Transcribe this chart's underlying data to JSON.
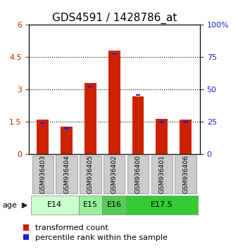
{
  "title": "GDS4591 / 1428786_at",
  "samples": [
    "GSM936403",
    "GSM936404",
    "GSM936405",
    "GSM936402",
    "GSM936400",
    "GSM936401",
    "GSM936406"
  ],
  "transformed_counts": [
    1.6,
    1.3,
    3.3,
    4.8,
    2.7,
    1.65,
    1.6
  ],
  "percentile_ranks": [
    1.45,
    1.2,
    3.15,
    4.65,
    2.75,
    1.5,
    1.5
  ],
  "percentile_bar_heights": [
    0.08,
    0.08,
    0.08,
    0.08,
    0.08,
    0.08,
    0.08
  ],
  "ylim_left": [
    0,
    6
  ],
  "ylim_right": [
    0,
    100
  ],
  "yticks_left": [
    0,
    1.5,
    3,
    4.5,
    6
  ],
  "ytick_labels_left": [
    "0",
    "1.5",
    "3",
    "4.5",
    "6"
  ],
  "yticks_right": [
    0,
    25,
    50,
    75,
    100
  ],
  "ytick_labels_right": [
    "0",
    "25",
    "50",
    "75",
    "100%"
  ],
  "bar_color_red": "#cc2200",
  "bar_color_blue": "#2222cc",
  "bar_width": 0.5,
  "age_groups": [
    {
      "label": "E14",
      "start": 0,
      "end": 2,
      "color": "#ccffcc"
    },
    {
      "label": "E15",
      "start": 2,
      "end": 3,
      "color": "#99ee99"
    },
    {
      "label": "E16",
      "start": 3,
      "end": 4,
      "color": "#55cc55"
    },
    {
      "label": "E17.5",
      "start": 4,
      "end": 7,
      "color": "#33cc33"
    }
  ],
  "sample_bg_color": "#cccccc",
  "legend_red_label": "transformed count",
  "legend_blue_label": "percentile rank within the sample",
  "age_label": "age",
  "grid_color": "#000000",
  "title_fontsize": 11,
  "tick_fontsize": 8,
  "legend_fontsize": 8
}
